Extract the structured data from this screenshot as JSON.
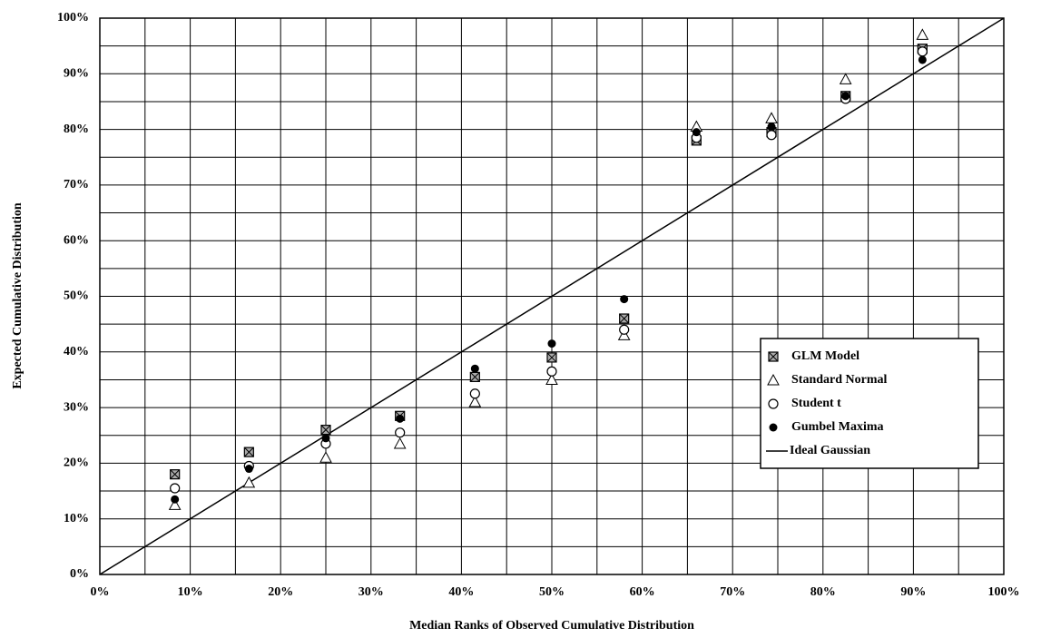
{
  "chart_data": {
    "type": "scatter",
    "x_label": "Median Ranks of Observed Cumulative Distribution",
    "y_label": "Expected Cumulative Distribution",
    "x": [
      8.3,
      16.5,
      25,
      33.2,
      41.5,
      50,
      58,
      66,
      74.3,
      82.5,
      91
    ],
    "series": [
      {
        "name": "GLM Model",
        "marker": "hatched-square",
        "color": "#000000",
        "values": [
          18,
          22,
          26,
          28.5,
          35.5,
          39,
          46,
          78,
          79.5,
          86,
          94.5
        ]
      },
      {
        "name": "Standard Normal",
        "marker": "triangle",
        "color": "#000000",
        "values": [
          12.5,
          16.5,
          21,
          23.5,
          31,
          35,
          43,
          80.5,
          82,
          89,
          97
        ]
      },
      {
        "name": "Student t",
        "marker": "circle",
        "color": "#000000",
        "values": [
          15.5,
          19.5,
          23.5,
          25.5,
          32.5,
          36.5,
          44,
          78.5,
          79,
          85.5,
          94
        ]
      },
      {
        "name": "Gumbel Maxima",
        "marker": "dot",
        "color": "#000000",
        "values": [
          13.5,
          19,
          24.5,
          28,
          37,
          41.5,
          49.5,
          79.5,
          80.5,
          86,
          92.5
        ]
      }
    ],
    "reference_line": {
      "name": "Ideal Gaussian",
      "x": [
        0,
        100
      ],
      "values": [
        0,
        100
      ],
      "color": "#000000"
    },
    "xlim": [
      0,
      100
    ],
    "ylim": [
      0,
      100
    ],
    "xticks": [
      {
        "value": 0,
        "label": "0%"
      },
      {
        "value": 10,
        "label": "10%"
      },
      {
        "value": 20,
        "label": "20%"
      },
      {
        "value": 30,
        "label": "30%"
      },
      {
        "value": 40,
        "label": "40%"
      },
      {
        "value": 50,
        "label": "50%"
      },
      {
        "value": 60,
        "label": "60%"
      },
      {
        "value": 70,
        "label": "70%"
      },
      {
        "value": 80,
        "label": "80%"
      },
      {
        "value": 90,
        "label": "90%"
      },
      {
        "value": 100,
        "label": "100%"
      }
    ],
    "yticks": [
      {
        "value": 0,
        "label": "0%"
      },
      {
        "value": 10,
        "label": "10%"
      },
      {
        "value": 20,
        "label": "20%"
      },
      {
        "value": 30,
        "label": "30%"
      },
      {
        "value": 40,
        "label": "40%"
      },
      {
        "value": 50,
        "label": "50%"
      },
      {
        "value": 60,
        "label": "60%"
      },
      {
        "value": 70,
        "label": "70%"
      },
      {
        "value": 80,
        "label": "80%"
      },
      {
        "value": 90,
        "label": "90%"
      },
      {
        "value": 100,
        "label": "100%"
      }
    ],
    "minor_ticks": [
      5,
      15,
      25,
      35,
      45,
      55,
      65,
      75,
      85,
      95
    ],
    "grid": true,
    "legend": "center right"
  }
}
